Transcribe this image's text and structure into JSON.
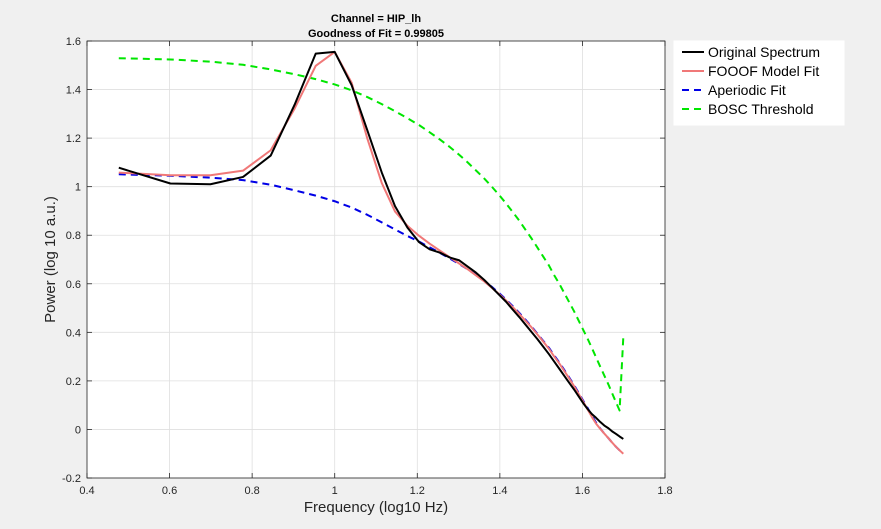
{
  "chart_data": {
    "type": "line",
    "title": [
      "Channel = HIP_lh",
      "Goodness of Fit = 0.99805"
    ],
    "xlabel": "Frequency (log10 Hz)",
    "ylabel": "Power (log 10 a.u.)",
    "xlim": [
      0.4,
      1.8
    ],
    "ylim": [
      -0.2,
      1.6
    ],
    "xticks": [
      0.4,
      0.6,
      0.8,
      1,
      1.2,
      1.4,
      1.6,
      1.8
    ],
    "xtick_labels": [
      "0.4",
      "0.6",
      "0.8",
      "1",
      "1.2",
      "1.4",
      "1.6",
      "1.8"
    ],
    "yticks": [
      -0.2,
      0,
      0.2,
      0.4,
      0.6,
      0.8,
      1,
      1.2,
      1.4,
      1.6
    ],
    "ytick_labels": [
      "-0.2",
      "0",
      "0.2",
      "0.4",
      "0.6",
      "0.8",
      "1",
      "1.2",
      "1.4",
      "1.6"
    ],
    "grid": true,
    "legend_position": "outside-top-right",
    "series": [
      {
        "name": "Original Spectrum",
        "color": "#000000",
        "style": "solid",
        "x": [
          0.477,
          0.602,
          0.699,
          0.778,
          0.845,
          0.903,
          0.954,
          1.0,
          1.041,
          1.079,
          1.114,
          1.146,
          1.176,
          1.204,
          1.23,
          1.255,
          1.279,
          1.301,
          1.322,
          1.342,
          1.362,
          1.38,
          1.398,
          1.415,
          1.431,
          1.447,
          1.462,
          1.477,
          1.491,
          1.505,
          1.519,
          1.531,
          1.544,
          1.556,
          1.568,
          1.58,
          1.591,
          1.602,
          1.613,
          1.623,
          1.633,
          1.643,
          1.653,
          1.663,
          1.672,
          1.681,
          1.69,
          1.699
        ],
        "y": [
          1.078,
          1.013,
          1.01,
          1.04,
          1.128,
          1.338,
          1.548,
          1.555,
          1.418,
          1.232,
          1.058,
          0.92,
          0.832,
          0.772,
          0.742,
          0.728,
          0.708,
          0.697,
          0.671,
          0.646,
          0.616,
          0.586,
          0.555,
          0.526,
          0.494,
          0.463,
          0.432,
          0.401,
          0.372,
          0.341,
          0.31,
          0.281,
          0.25,
          0.221,
          0.192,
          0.164,
          0.136,
          0.108,
          0.083,
          0.063,
          0.048,
          0.031,
          0.016,
          0.005,
          -0.008,
          -0.018,
          -0.029,
          -0.039
        ]
      },
      {
        "name": "FOOOF Model Fit",
        "color": "#f07878",
        "style": "solid",
        "x": [
          0.477,
          0.602,
          0.699,
          0.778,
          0.845,
          0.903,
          0.954,
          1.0,
          1.041,
          1.079,
          1.114,
          1.146,
          1.176,
          1.204,
          1.23,
          1.255,
          1.279,
          1.301,
          1.322,
          1.342,
          1.362,
          1.38,
          1.398,
          1.415,
          1.431,
          1.447,
          1.462,
          1.477,
          1.491,
          1.505,
          1.519,
          1.531,
          1.544,
          1.556,
          1.568,
          1.58,
          1.591,
          1.602,
          1.613,
          1.623,
          1.633,
          1.643,
          1.653,
          1.663,
          1.672,
          1.681,
          1.69,
          1.699
        ],
        "y": [
          1.058,
          1.047,
          1.047,
          1.066,
          1.15,
          1.322,
          1.498,
          1.555,
          1.428,
          1.198,
          1.015,
          0.898,
          0.839,
          0.798,
          0.765,
          0.736,
          0.709,
          0.684,
          0.66,
          0.635,
          0.61,
          0.584,
          0.558,
          0.531,
          0.504,
          0.476,
          0.448,
          0.42,
          0.391,
          0.362,
          0.332,
          0.302,
          0.272,
          0.241,
          0.21,
          0.178,
          0.146,
          0.114,
          0.081,
          0.051,
          0.024,
          0.003,
          -0.017,
          -0.036,
          -0.054,
          -0.071,
          -0.086,
          -0.1
        ]
      },
      {
        "name": "Aperiodic Fit",
        "color": "#0000e6",
        "style": "dashed",
        "x": [
          0.477,
          0.602,
          0.699,
          0.778,
          0.845,
          0.903,
          0.954,
          1.0,
          1.041,
          1.079,
          1.114,
          1.146,
          1.176,
          1.204,
          1.23,
          1.255,
          1.279,
          1.301,
          1.322,
          1.342,
          1.362,
          1.38,
          1.398,
          1.415,
          1.431,
          1.447,
          1.462,
          1.477,
          1.491,
          1.505,
          1.519,
          1.531,
          1.544,
          1.556,
          1.568,
          1.58,
          1.591,
          1.602,
          1.613,
          1.623,
          1.633,
          1.643,
          1.653,
          1.663,
          1.672,
          1.681,
          1.69,
          1.699
        ],
        "y": [
          1.051,
          1.045,
          1.037,
          1.027,
          1.008,
          0.985,
          0.963,
          0.94,
          0.914,
          0.884,
          0.853,
          0.824,
          0.797,
          0.774,
          0.75,
          0.727,
          0.704,
          0.682,
          0.66,
          0.637,
          0.612,
          0.588,
          0.562,
          0.535,
          0.508,
          0.48,
          0.452,
          0.423,
          0.394,
          0.365,
          0.336,
          0.306,
          0.276,
          0.245,
          0.214,
          0.182,
          0.15,
          0.118,
          0.087,
          0.057,
          0.028,
          0.004,
          -0.017,
          -0.036,
          -0.054,
          -0.071,
          -0.086,
          -0.1
        ]
      },
      {
        "name": "BOSC Threshold",
        "color": "#00e600",
        "style": "dashed",
        "x": [
          0.477,
          0.602,
          0.699,
          0.778,
          0.845,
          0.903,
          0.954,
          1.0,
          1.041,
          1.079,
          1.114,
          1.146,
          1.176,
          1.204,
          1.23,
          1.255,
          1.279,
          1.301,
          1.322,
          1.342,
          1.362,
          1.38,
          1.398,
          1.415,
          1.431,
          1.447,
          1.462,
          1.477,
          1.491,
          1.505,
          1.519,
          1.531,
          1.544,
          1.556,
          1.568,
          1.58,
          1.591,
          1.602,
          1.613,
          1.623,
          1.633,
          1.643,
          1.653,
          1.663,
          1.672,
          1.681,
          1.69,
          1.699
        ],
        "y": [
          1.529,
          1.524,
          1.515,
          1.502,
          1.483,
          1.463,
          1.443,
          1.421,
          1.397,
          1.369,
          1.34,
          1.311,
          1.282,
          1.254,
          1.224,
          1.194,
          1.163,
          1.132,
          1.1,
          1.067,
          1.034,
          1.001,
          0.966,
          0.931,
          0.896,
          0.86,
          0.823,
          0.786,
          0.749,
          0.712,
          0.675,
          0.637,
          0.6,
          0.562,
          0.524,
          0.486,
          0.448,
          0.41,
          0.372,
          0.335,
          0.297,
          0.259,
          0.222,
          0.185,
          0.149,
          0.113,
          0.078,
          0.38
        ]
      }
    ]
  }
}
